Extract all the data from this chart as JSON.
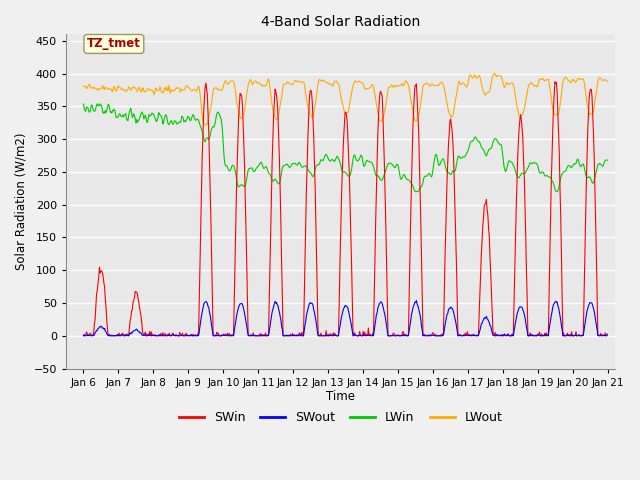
{
  "title": "4-Band Solar Radiation",
  "xlabel": "Time",
  "ylabel": "Solar Radiation (W/m2)",
  "ylim": [
    -50,
    460
  ],
  "yticks": [
    -50,
    0,
    50,
    100,
    150,
    200,
    250,
    300,
    350,
    400,
    450
  ],
  "xlim_start": 5.5,
  "xlim_end": 21.2,
  "xtick_labels": [
    "Jan 6",
    "Jan 7",
    "Jan 8",
    "Jan 9",
    "Jan 10",
    "Jan 11",
    "Jan 12",
    "Jan 13",
    "Jan 14",
    "Jan 15",
    "Jan 16",
    "Jan 17",
    "Jan 18",
    "Jan 19",
    "Jan 20",
    "Jan 21"
  ],
  "xtick_positions": [
    6,
    7,
    8,
    9,
    10,
    11,
    12,
    13,
    14,
    15,
    16,
    17,
    18,
    19,
    20,
    21
  ],
  "colors": {
    "SWin": "#ff0000",
    "SWout": "#0000ff",
    "LWin": "#00cc00",
    "LWout": "#ffaa00"
  },
  "annotation_text": "TZ_tmet",
  "annotation_color": "#aa0000",
  "annotation_bg": "#ffffdd",
  "bg_color": "#e8e8e8",
  "grid_color": "#ffffff",
  "linewidth": 0.8
}
